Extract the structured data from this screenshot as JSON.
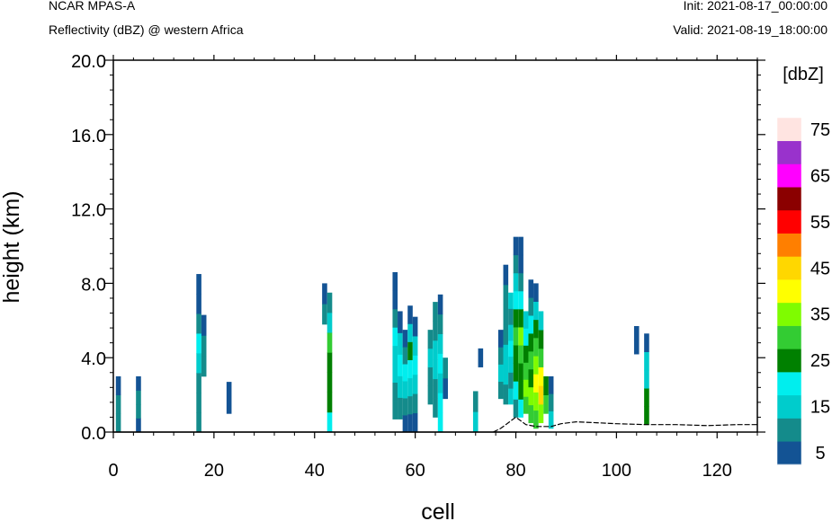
{
  "header": {
    "model": "NCAR MPAS-A",
    "field": "Reflectivity (dBZ) @ western Africa",
    "init": "Init: 2021-08-17_00:00:00",
    "valid": "Valid: 2021-08-19_18:00:00"
  },
  "chart_data": {
    "type": "heatmap",
    "xlabel": "cell",
    "ylabel": "height (km)",
    "xlim": [
      0,
      128
    ],
    "ylim": [
      0,
      20
    ],
    "x_ticks": [
      "0",
      "20",
      "40",
      "60",
      "80",
      "100",
      "120"
    ],
    "y_ticks": [
      "0.0",
      "4.0",
      "8.0",
      "12.0",
      "16.0",
      "20.0"
    ],
    "x_tick_values": [
      0,
      20,
      40,
      60,
      80,
      100,
      120
    ],
    "y_tick_values": [
      0,
      4,
      8,
      12,
      16,
      20
    ],
    "colorbar": {
      "title": "[dbZ]",
      "labels": [
        "5",
        "15",
        "25",
        "35",
        "45",
        "55",
        "65",
        "75"
      ],
      "label_levels": [
        5,
        15,
        25,
        35,
        45,
        55,
        65,
        75
      ],
      "levels": [
        5,
        10,
        15,
        20,
        25,
        30,
        35,
        40,
        45,
        50,
        55,
        60,
        65,
        70,
        75
      ],
      "colors": [
        "#135394",
        "#148b8b",
        "#00cccc",
        "#00eeee",
        "#008000",
        "#33cc33",
        "#7ffc00",
        "#ffff00",
        "#ffd700",
        "#ff7f00",
        "#ff0000",
        "#8b0000",
        "#ff00ff",
        "#9932cc",
        "#ffe4e1"
      ]
    },
    "terrain": [
      [
        75.5,
        0.0
      ],
      [
        77,
        0.2
      ],
      [
        80,
        0.8
      ],
      [
        82,
        0.4
      ],
      [
        84,
        0.3
      ],
      [
        87,
        0.3
      ],
      [
        89,
        0.45
      ],
      [
        92,
        0.55
      ],
      [
        96,
        0.5
      ],
      [
        100,
        0.45
      ],
      [
        106,
        0.4
      ],
      [
        112,
        0.4
      ],
      [
        118,
        0.35
      ],
      [
        124,
        0.4
      ],
      [
        128,
        0.4
      ]
    ],
    "cells": [
      {
        "x": 1,
        "bottom": 0,
        "top": 3,
        "dbz": [
          10,
          10,
          5
        ]
      },
      {
        "x": 5,
        "bottom": 0,
        "top": 3,
        "dbz": [
          5,
          10,
          10,
          5
        ]
      },
      {
        "x": 17,
        "bottom": 0,
        "top": 8.5,
        "dbz": [
          10,
          10,
          10,
          15,
          20,
          10,
          5,
          5
        ]
      },
      {
        "x": 18,
        "bottom": 3,
        "top": 6.3,
        "dbz": [
          10,
          10,
          5
        ]
      },
      {
        "x": 23,
        "bottom": 1,
        "top": 2.7,
        "dbz": [
          5
        ]
      },
      {
        "x": 42,
        "bottom": 5.8,
        "top": 8,
        "dbz": [
          10,
          5
        ]
      },
      {
        "x": 43,
        "bottom": 0,
        "top": 7.5,
        "dbz": [
          20,
          25,
          25,
          25,
          30,
          15,
          10
        ]
      },
      {
        "x": 56,
        "bottom": 0.7,
        "top": 8.6,
        "dbz": [
          10,
          10,
          15,
          15,
          20,
          10,
          5,
          5
        ]
      },
      {
        "x": 57,
        "bottom": 0.7,
        "top": 6.5,
        "dbz": [
          10,
          15,
          20,
          15,
          5
        ]
      },
      {
        "x": 58,
        "bottom": 0,
        "top": 5.5,
        "dbz": [
          5,
          10,
          15,
          20,
          10,
          5
        ]
      },
      {
        "x": 59,
        "bottom": 0,
        "top": 6.8,
        "dbz": [
          5,
          10,
          15,
          20,
          25,
          15,
          5
        ]
      },
      {
        "x": 60,
        "bottom": 0,
        "top": 6.2,
        "dbz": [
          5,
          10,
          15,
          20,
          15,
          5
        ]
      },
      {
        "x": 63,
        "bottom": 1.5,
        "top": 5.5,
        "dbz": [
          10,
          10,
          15,
          10
        ]
      },
      {
        "x": 64,
        "bottom": 0.8,
        "top": 7.0,
        "dbz": [
          10,
          10,
          15,
          15,
          10,
          10
        ]
      },
      {
        "x": 65,
        "bottom": 0,
        "top": 7.4,
        "dbz": [
          20,
          20,
          15,
          20,
          15,
          10,
          5
        ]
      },
      {
        "x": 66,
        "bottom": 1.8,
        "top": 4.0,
        "dbz": [
          5,
          10
        ]
      },
      {
        "x": 72,
        "bottom": 0,
        "top": 2.2,
        "dbz": [
          15,
          10
        ]
      },
      {
        "x": 73,
        "bottom": 3.5,
        "top": 4.5,
        "dbz": [
          5
        ]
      },
      {
        "x": 77,
        "bottom": 1.8,
        "top": 5.5,
        "dbz": [
          10,
          15,
          10,
          5
        ]
      },
      {
        "x": 78,
        "bottom": 1.5,
        "top": 9.0,
        "dbz": [
          10,
          15,
          15,
          10,
          10,
          10,
          5
        ]
      },
      {
        "x": 79,
        "bottom": 1.5,
        "top": 7.5,
        "dbz": [
          15,
          10,
          15,
          20,
          15,
          10,
          15
        ]
      },
      {
        "x": 80,
        "bottom": 0.8,
        "top": 10.5,
        "dbz": [
          10,
          20,
          25,
          25,
          30,
          25,
          20,
          15,
          10,
          5
        ]
      },
      {
        "x": 81,
        "bottom": 0.8,
        "top": 10.5,
        "dbz": [
          20,
          25,
          25,
          30,
          35,
          25,
          20,
          10,
          5,
          5
        ]
      },
      {
        "x": 82,
        "bottom": 1.0,
        "top": 6.5,
        "dbz": [
          30,
          35,
          30,
          25,
          20,
          15
        ]
      },
      {
        "x": 83,
        "bottom": 0.5,
        "top": 8.2,
        "dbz": [
          30,
          35,
          25,
          30,
          25,
          20,
          10,
          5
        ]
      },
      {
        "x": 84,
        "bottom": 0.2,
        "top": 8.0,
        "dbz": [
          30,
          35,
          40,
          35,
          30,
          25,
          15,
          5
        ]
      },
      {
        "x": 85,
        "bottom": 0.5,
        "top": 6.5,
        "dbz": [
          35,
          45,
          40,
          30,
          25,
          15
        ]
      },
      {
        "x": 86,
        "bottom": 1.0,
        "top": 3.0,
        "dbz": [
          30,
          25
        ]
      },
      {
        "x": 87,
        "bottom": 0.2,
        "top": 3.0,
        "dbz": [
          15,
          10,
          5
        ]
      },
      {
        "x": 104,
        "bottom": 4.2,
        "top": 5.7,
        "dbz": [
          5,
          5
        ]
      },
      {
        "x": 106,
        "bottom": 0.4,
        "top": 5.3,
        "dbz": [
          25,
          25,
          15,
          15,
          5
        ]
      }
    ]
  }
}
